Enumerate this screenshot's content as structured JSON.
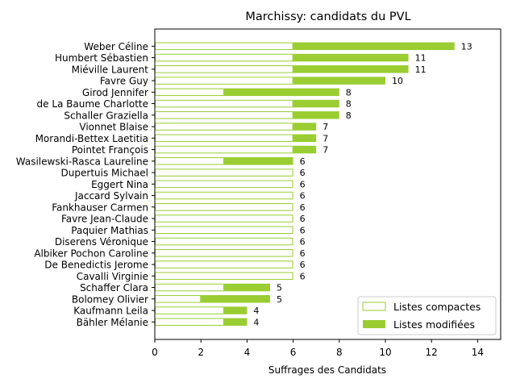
{
  "chart_data": {
    "type": "bar",
    "orientation": "horizontal",
    "stacked": true,
    "title": "Marchissy: candidats du PVL",
    "xlabel": "Suffrages des Candidats",
    "ylabel": "",
    "xlim": [
      0,
      15
    ],
    "xticks": [
      0,
      2,
      4,
      6,
      8,
      10,
      12,
      14
    ],
    "categories": [
      "Weber Céline",
      "Humbert Sébastien",
      "Miéville Laurent",
      "Favre Guy",
      "Girod Jennifer",
      "de La Baume Charlotte",
      "Schaller Graziella",
      "Vionnet Blaise",
      "Morandi-Bettex Laetitia",
      "Pointet François",
      "Wasilewski-Rasca Laureline",
      "Dupertuis Michael",
      "Eggert Nina",
      "Jaccard Sylvain",
      "Fankhauser Carmen",
      "Favre Jean-Claude",
      "Paquier Mathias",
      "Diserens Véronique",
      "Albiker Pochon Caroline",
      "De Benedictis Jerome",
      "Cavalli Virginie",
      "Schaffer Clara",
      "Bolomey Olivier",
      "Kaufmann Leila",
      "Bähler Mélanie"
    ],
    "series": [
      {
        "name": "Listes compactes",
        "style": "outline",
        "values": [
          6,
          6,
          6,
          6,
          3,
          6,
          6,
          6,
          6,
          6,
          3,
          6,
          6,
          6,
          6,
          6,
          6,
          6,
          6,
          6,
          6,
          3,
          2,
          3,
          3
        ]
      },
      {
        "name": "Listes modifiées",
        "style": "filled",
        "values": [
          7,
          5,
          5,
          4,
          5,
          2,
          2,
          1,
          1,
          1,
          3,
          0,
          0,
          0,
          0,
          0,
          0,
          0,
          0,
          0,
          0,
          2,
          3,
          1,
          1
        ]
      }
    ],
    "totals": [
      13,
      11,
      11,
      10,
      8,
      8,
      8,
      7,
      7,
      7,
      6,
      6,
      6,
      6,
      6,
      6,
      6,
      6,
      6,
      6,
      6,
      5,
      5,
      4,
      4
    ],
    "colors": {
      "bar": "#9acd32"
    },
    "legend": {
      "placement": "lower-right"
    },
    "grid": false
  }
}
